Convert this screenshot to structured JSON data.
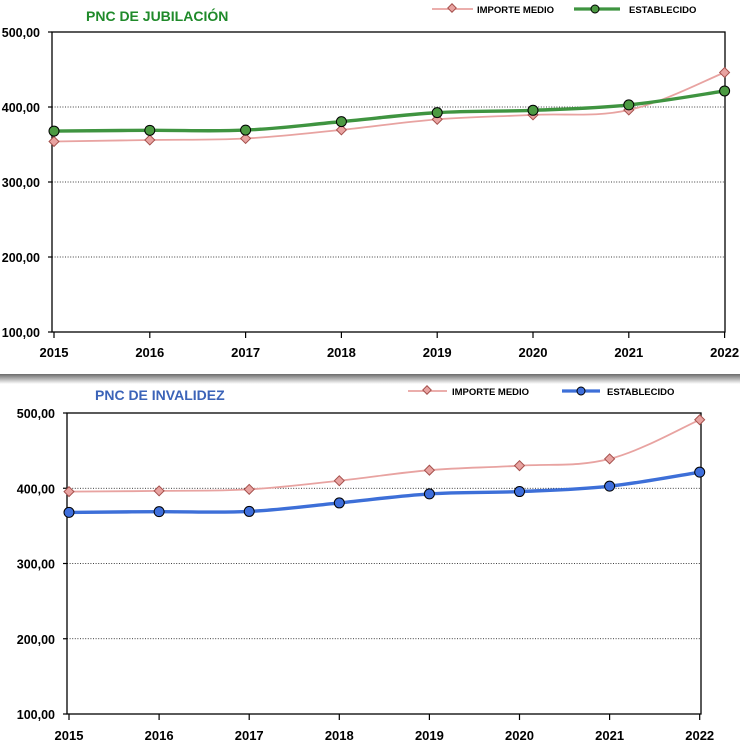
{
  "chart_data": [
    {
      "type": "line",
      "title": "PNC DE JUBILACIÓN",
      "title_color": "#1f8a2a",
      "categories": [
        "2015",
        "2016",
        "2017",
        "2018",
        "2019",
        "2020",
        "2021",
        "2022"
      ],
      "series": [
        {
          "name": "IMPORTE MEDIO",
          "color": "#e8a3a1",
          "marker": "diamond",
          "values": [
            354.0,
            356.0,
            358.0,
            369.5,
            383.5,
            389.5,
            396.0,
            446.0
          ]
        },
        {
          "name": "ESTABLECIDO",
          "color": "#3f9440",
          "marker": "circle",
          "values": [
            367.9,
            368.9,
            369.2,
            380.5,
            392.5,
            395.6,
            402.8,
            421.4
          ]
        }
      ],
      "ylim": [
        100,
        500
      ],
      "yticks": [
        "100,00",
        "200,00",
        "300,00",
        "400,00",
        "500,00"
      ],
      "grid": true,
      "legend": "top-right"
    },
    {
      "type": "line",
      "title": "PNC DE INVALIDEZ",
      "title_color": "#3b63b8",
      "categories": [
        "2015",
        "2016",
        "2017",
        "2018",
        "2019",
        "2020",
        "2021",
        "2022"
      ],
      "series": [
        {
          "name": "IMPORTE MEDIO",
          "color": "#e8a3a1",
          "marker": "diamond",
          "values": [
            395.5,
            396.5,
            398.5,
            410.0,
            424.0,
            430.0,
            439.0,
            491.0
          ]
        },
        {
          "name": "ESTABLECIDO",
          "color": "#3d6fd8",
          "marker": "circle",
          "values": [
            367.9,
            368.9,
            369.2,
            380.5,
            392.5,
            395.6,
            402.8,
            421.4
          ]
        }
      ],
      "ylim": [
        100,
        500
      ],
      "yticks": [
        "100,00",
        "200,00",
        "300,00",
        "400,00",
        "500,00"
      ],
      "grid": true,
      "legend": "top-right"
    }
  ]
}
